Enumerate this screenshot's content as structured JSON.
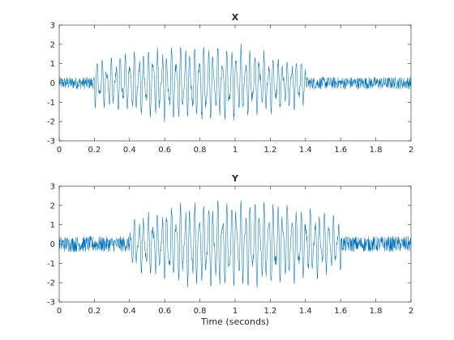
{
  "chart_data": [
    {
      "type": "line",
      "title": "X",
      "xlabel": "",
      "ylabel": "",
      "xlim": [
        0,
        2
      ],
      "ylim": [
        -3,
        3
      ],
      "x_ticks": [
        "0",
        "0.2",
        "0.4",
        "0.6",
        "0.8",
        "1",
        "1.2",
        "1.4",
        "1.6",
        "1.8",
        "2"
      ],
      "y_ticks": [
        "-3",
        "-2",
        "-1",
        "0",
        "1",
        "2",
        "3"
      ],
      "grid": false,
      "series": [
        {
          "color": "#0072BD",
          "signal_segments": [
            {
              "x_range": [
                0.0,
                0.2
              ],
              "amplitude": 0.35,
              "kind": "noise"
            },
            {
              "x_range": [
                0.2,
                1.4
              ],
              "amplitude": 2.3,
              "kind": "oscillation"
            },
            {
              "x_range": [
                1.4,
                2.0
              ],
              "amplitude": 0.35,
              "kind": "noise"
            }
          ],
          "peaks": {
            "x": [
              0.5,
              0.62,
              0.7,
              0.78,
              0.92,
              1.02,
              1.1
            ],
            "y": [
              1.5,
              2.3,
              2.5,
              2.4,
              1.8,
              2.1,
              1.4
            ]
          }
        }
      ]
    },
    {
      "type": "line",
      "title": "Y",
      "xlabel": "Time (seconds)",
      "ylabel": "",
      "xlim": [
        0,
        2
      ],
      "ylim": [
        -3,
        3
      ],
      "x_ticks": [
        "0",
        "0.2",
        "0.4",
        "0.6",
        "0.8",
        "1",
        "1.2",
        "1.4",
        "1.6",
        "1.8",
        "2"
      ],
      "y_ticks": [
        "-3",
        "-2",
        "-1",
        "0",
        "1",
        "2",
        "3"
      ],
      "grid": false,
      "series": [
        {
          "color": "#0072BD",
          "signal_segments": [
            {
              "x_range": [
                0.0,
                0.4
              ],
              "amplitude": 0.45,
              "kind": "noise"
            },
            {
              "x_range": [
                0.4,
                1.6
              ],
              "amplitude": 2.7,
              "kind": "oscillation"
            },
            {
              "x_range": [
                1.6,
                2.0
              ],
              "amplitude": 0.45,
              "kind": "noise"
            }
          ],
          "peaks": {
            "x": [
              0.62,
              0.78,
              0.88,
              0.95,
              1.1,
              1.3
            ],
            "y": [
              2.7,
              2.2,
              2.5,
              2.6,
              1.6,
              1.3
            ]
          }
        }
      ]
    }
  ]
}
